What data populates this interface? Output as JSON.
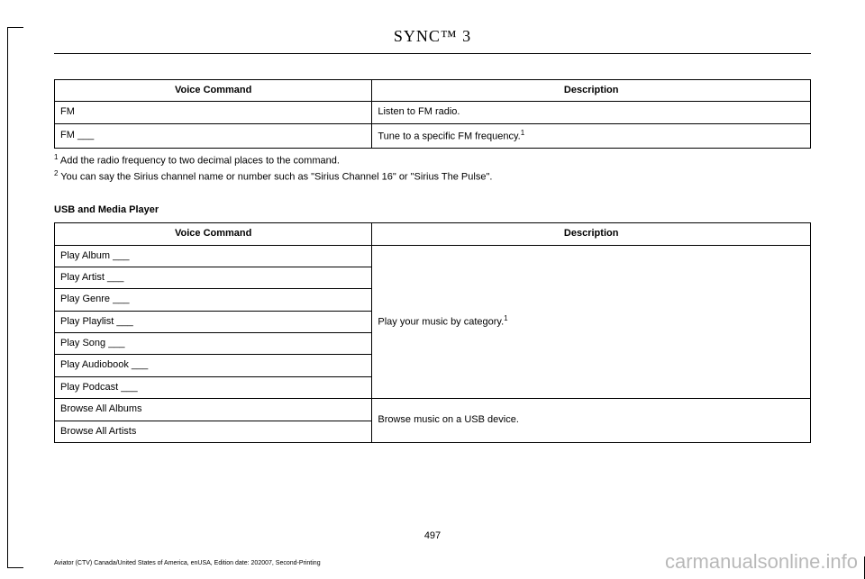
{
  "header": {
    "title": "SYNC™ 3"
  },
  "table1": {
    "headers": {
      "cmd": "Voice Command",
      "desc": "Description"
    },
    "rows": [
      {
        "cmd": "FM",
        "desc": "Listen to FM radio."
      },
      {
        "cmd": "FM ___",
        "desc": "Tune to a specific FM frequency.",
        "sup": "1"
      }
    ]
  },
  "footnotes": {
    "n1_sup": "1",
    "n1": " Add the radio frequency to two decimal places to the command.",
    "n2_sup": "2",
    "n2": " You can say the Sirius channel name or number such as \"Sirius Channel 16\" or \"Sirius The Pulse\"."
  },
  "section2": {
    "heading": "USB and Media Player"
  },
  "table2": {
    "headers": {
      "cmd": "Voice Command",
      "desc": "Description"
    },
    "group1": {
      "rows": [
        "Play Album ___",
        "Play Artist ___",
        "Play Genre ___",
        "Play Playlist ___",
        "Play Song ___",
        "Play Audiobook ___",
        "Play Podcast ___"
      ],
      "desc": "Play your music by category.",
      "sup": "1"
    },
    "group2": {
      "rows": [
        "Browse All Albums",
        "Browse All Artists"
      ],
      "desc": "Browse music on a USB device."
    }
  },
  "page_number": "497",
  "footer_meta": "Aviator (CTV) Canada/United States of America, enUSA, Edition date: 202007, Second-Printing",
  "watermark": "carmanualsonline.info"
}
